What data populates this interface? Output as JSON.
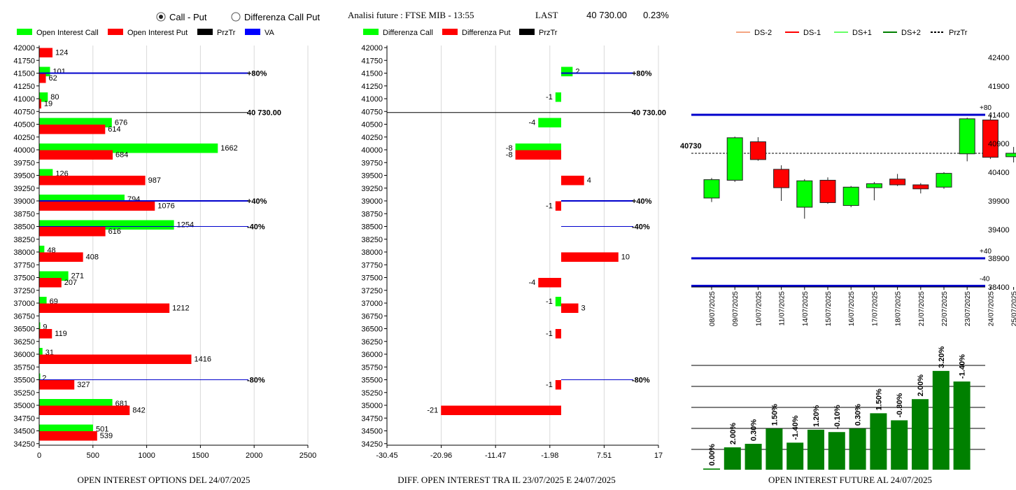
{
  "header": {
    "radio_options": [
      {
        "label": "Call - Put",
        "selected": true
      },
      {
        "label": "Differenza Call Put",
        "selected": false
      }
    ],
    "title": "Analisi future : FTSE MIB - 13:55",
    "last_label": "LAST",
    "last_value": "40 730.00",
    "last_change": "0.23%"
  },
  "chart_data": [
    {
      "type": "bar",
      "orientation": "horizontal",
      "title": "OPEN INTEREST OPTIONS DEL 24/07/2025",
      "legend": [
        {
          "label": "Open Interest Call",
          "color": "#00ff00"
        },
        {
          "label": "Open Interest Put",
          "color": "#ff0000"
        },
        {
          "label": "PrzTr",
          "color": "#000000"
        },
        {
          "label": "VA",
          "color": "#0000ff"
        }
      ],
      "y_ticks": [
        "42000",
        "41750",
        "41500",
        "41250",
        "41000",
        "40750",
        "40500",
        "40250",
        "40000",
        "39750",
        "39500",
        "39250",
        "39000",
        "38750",
        "38500",
        "38250",
        "38000",
        "37750",
        "37500",
        "37250",
        "37000",
        "36750",
        "36500",
        "36250",
        "36000",
        "35750",
        "35500",
        "35250",
        "35000",
        "34750",
        "34500",
        "34250"
      ],
      "x_ticks": [
        "0",
        "500",
        "1000",
        "1500",
        "2000",
        "2500"
      ],
      "xlim": [
        0,
        2500
      ],
      "bars": [
        {
          "strike": 42000,
          "put": 124
        },
        {
          "strike": 41500,
          "call": 101,
          "put": 62
        },
        {
          "strike": 41000,
          "call": 80,
          "put": 19
        },
        {
          "strike": 40500,
          "call": 676,
          "put": 614
        },
        {
          "strike": 40000,
          "call": 1662,
          "put": 684
        },
        {
          "strike": 39500,
          "call": 126,
          "put": 987
        },
        {
          "strike": 39000,
          "call": 794,
          "put": 1076
        },
        {
          "strike": 38500,
          "call": 1254,
          "put": 616
        },
        {
          "strike": 38000,
          "call": 48,
          "put": 408
        },
        {
          "strike": 37500,
          "call": 271,
          "put": 207
        },
        {
          "strike": 37000,
          "call": 69,
          "put": 1212
        },
        {
          "strike": 36500,
          "call": 9,
          "put": 119
        },
        {
          "strike": 36000,
          "call": 31,
          "put": 1416
        },
        {
          "strike": 35500,
          "call": 2,
          "put": 327
        },
        {
          "strike": 35000,
          "call": 681,
          "put": 842
        },
        {
          "strike": 34500,
          "call": 501,
          "put": 539
        }
      ],
      "lines": [
        {
          "level": 41500,
          "label": "+80%",
          "color": "#0000cc",
          "thick": true
        },
        {
          "level": 40730,
          "label": "40 730.00",
          "color": "#000000",
          "thick": false
        },
        {
          "level": 39000,
          "label": "+40%",
          "color": "#0000cc",
          "thick": true
        },
        {
          "level": 38500,
          "label": "-40%",
          "color": "#0000cc",
          "thick": false
        },
        {
          "level": 35500,
          "label": "-80%",
          "color": "#0000cc",
          "thick": false
        }
      ]
    },
    {
      "type": "bar",
      "orientation": "horizontal",
      "title": "DIFF. OPEN INTEREST TRA IL 23/07/2025 E 24/07/2025",
      "legend": [
        {
          "label": "Differenza Call",
          "color": "#00ff00"
        },
        {
          "label": "Differenza Put",
          "color": "#ff0000"
        },
        {
          "label": "PrzTr",
          "color": "#000000"
        }
      ],
      "y_ticks": [
        "42000",
        "41750",
        "41500",
        "41250",
        "41000",
        "40750",
        "40500",
        "40250",
        "40000",
        "39750",
        "39500",
        "39250",
        "39000",
        "38750",
        "38500",
        "38250",
        "38000",
        "37750",
        "37500",
        "37250",
        "37000",
        "36750",
        "36500",
        "36250",
        "36000",
        "35750",
        "35500",
        "35250",
        "35000",
        "34750",
        "34500",
        "34250"
      ],
      "x_ticks": [
        "-30.45",
        "-20.96",
        "-11.47",
        "-1.98",
        "7.51",
        "17"
      ],
      "xlim": [
        -30.45,
        17
      ],
      "bars": [
        {
          "strike": 41500,
          "call": 2
        },
        {
          "strike": 41000,
          "call": -1
        },
        {
          "strike": 40500,
          "call": -4
        },
        {
          "strike": 40000,
          "call": -8,
          "put": -8
        },
        {
          "strike": 39500,
          "put": 4
        },
        {
          "strike": 39000,
          "put": -1
        },
        {
          "strike": 38000,
          "put": 10
        },
        {
          "strike": 37500,
          "put": -4
        },
        {
          "strike": 37000,
          "call": -1,
          "put": 3
        },
        {
          "strike": 36500,
          "put": -1
        },
        {
          "strike": 35500,
          "put": -1
        },
        {
          "strike": 35000,
          "put": -21
        }
      ],
      "lines": [
        {
          "level": 41500,
          "label": "+80%",
          "color": "#0000cc",
          "thick": true
        },
        {
          "level": 40730,
          "label": "40 730.00",
          "color": "#000000",
          "thick": false
        },
        {
          "level": 39000,
          "label": "+40%",
          "color": "#0000cc",
          "thick": true
        },
        {
          "level": 38500,
          "label": "-40%",
          "color": "#0000cc",
          "thick": false
        },
        {
          "level": 35500,
          "label": "-80%",
          "color": "#0000cc",
          "thick": false
        }
      ]
    },
    {
      "type": "candlestick",
      "legend": [
        {
          "label": "DS-2",
          "color": "#f4a582",
          "dash": false
        },
        {
          "label": "DS-1",
          "color": "#ff0000",
          "dash": false
        },
        {
          "label": "DS+1",
          "color": "#66ff66",
          "dash": false
        },
        {
          "label": "DS+2",
          "color": "#008000",
          "dash": false
        },
        {
          "label": "PrzTr",
          "color": "#000000",
          "dash": true
        }
      ],
      "y_ticks": [
        "42400",
        "41900",
        "41400",
        "40900",
        "40400",
        "39900",
        "39400",
        "38900",
        "38400"
      ],
      "ylim": [
        38400,
        42400
      ],
      "dates": [
        "08/07/2025",
        "09/07/2025",
        "10/07/2025",
        "11/07/2025",
        "14/07/2025",
        "15/07/2025",
        "16/07/2025",
        "17/07/2025",
        "18/07/2025",
        "21/07/2025",
        "22/07/2025",
        "23/07/2025",
        "24/07/2025",
        "25/07/2025"
      ],
      "candles": [
        {
          "o": 39950,
          "c": 40270,
          "h": 40300,
          "l": 39880
        },
        {
          "o": 40260,
          "c": 41000,
          "h": 41020,
          "l": 40230
        },
        {
          "o": 40930,
          "c": 40620,
          "h": 41010,
          "l": 40600
        },
        {
          "o": 40450,
          "c": 40130,
          "h": 40520,
          "l": 39900
        },
        {
          "o": 39790,
          "c": 40250,
          "h": 40280,
          "l": 39590
        },
        {
          "o": 40260,
          "c": 39870,
          "h": 40310,
          "l": 39850
        },
        {
          "o": 39820,
          "c": 40140,
          "h": 40160,
          "l": 39790
        },
        {
          "o": 40130,
          "c": 40200,
          "h": 40230,
          "l": 39910
        },
        {
          "o": 40280,
          "c": 40180,
          "h": 40370,
          "l": 40160
        },
        {
          "o": 40180,
          "c": 40110,
          "h": 40210,
          "l": 40030
        },
        {
          "o": 40140,
          "c": 40380,
          "h": 40400,
          "l": 40110
        },
        {
          "o": 40720,
          "c": 41330,
          "h": 41350,
          "l": 40590
        },
        {
          "o": 41310,
          "c": 40660,
          "h": 41400,
          "l": 40630
        },
        {
          "o": 40670,
          "c": 40730,
          "h": 40840,
          "l": 40570
        }
      ],
      "levels": [
        {
          "value": 41400,
          "label": "+80"
        },
        {
          "value": 38900,
          "label": "+40"
        },
        {
          "value": 38420,
          "label": "-40"
        }
      ],
      "price_line": {
        "value": 40730,
        "label": "40730"
      }
    },
    {
      "type": "bar",
      "title": "OPEN INTEREST FUTURE AL 24/07/2025",
      "bar_color": "#008000",
      "heights_pct": [
        1,
        19,
        22,
        35,
        23,
        34,
        32,
        35,
        48,
        42,
        60,
        84,
        75
      ],
      "labels": [
        "0.00%",
        "2.00%",
        "0.30%",
        "1.50%",
        "-1.40%",
        "1.20%",
        "-0.10%",
        "0.30%",
        "1.50%",
        "-0.80%",
        "2.00%",
        "3.20%",
        "-1.40%"
      ]
    }
  ]
}
